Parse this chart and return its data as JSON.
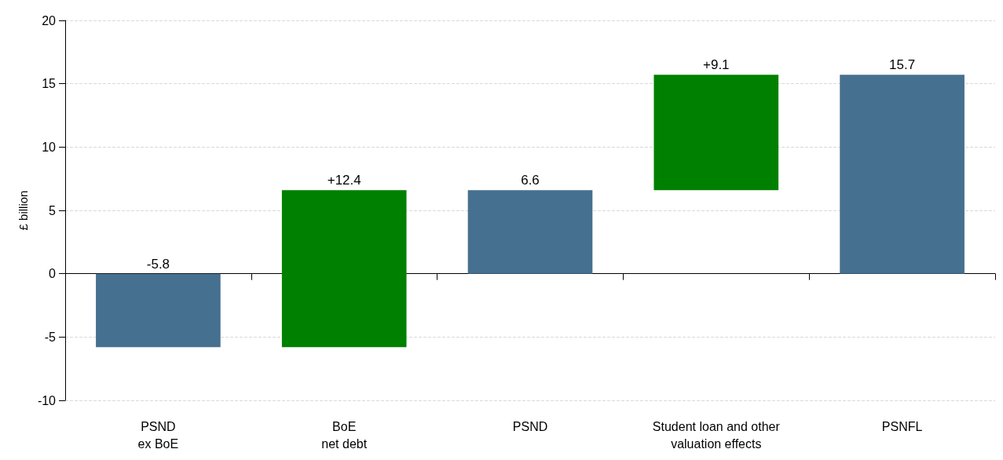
{
  "chart_data": {
    "type": "bar",
    "ylabel": "£ billion",
    "categories": [
      "PSND\nex BoE",
      "BoE\nnet debt",
      "PSND",
      "Student loan and other\nvaluation effects",
      "PSNFL"
    ],
    "values": [
      -5.8,
      12.4,
      6.6,
      9.1,
      15.7
    ],
    "base": [
      0,
      -5.8,
      0,
      6.6,
      0
    ],
    "colors": [
      "#46708f",
      "#008000",
      "#46708f",
      "#008000",
      "#46708f"
    ],
    "value_labels": [
      "-5.8",
      "+12.4",
      "6.6",
      "+9.1",
      "15.7"
    ],
    "ylim": [
      -10,
      20
    ],
    "yticks": [
      -10,
      -5,
      0,
      5,
      10,
      15,
      20
    ],
    "grid": "y"
  }
}
